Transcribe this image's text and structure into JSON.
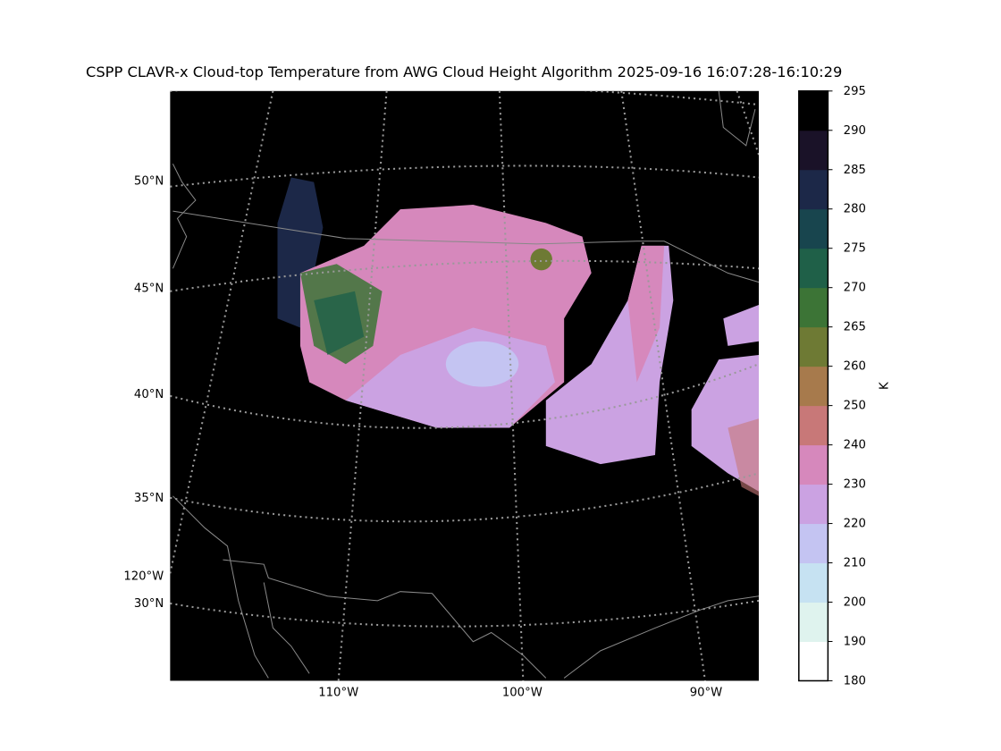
{
  "header": {
    "title": "CSPP CLAVR-x Cloud-top Temperature from AWG Cloud Height Algorithm 2025-09-16 16:07:28-16:10:29"
  },
  "map": {
    "lat_labels": [
      "50°N",
      "45°N",
      "40°N",
      "35°N",
      "30°N"
    ],
    "lon_labels": [
      "110°W",
      "100°W",
      "90°W"
    ],
    "edge_lon_label": "120°W"
  },
  "colorbar": {
    "label": "K",
    "ticks": [
      180,
      190,
      200,
      210,
      220,
      230,
      240,
      250,
      260,
      265,
      270,
      275,
      280,
      285,
      290,
      295
    ],
    "colors": [
      "#ffffff",
      "#dff3ee",
      "#c6e2f2",
      "#c4c4f2",
      "#cba2e2",
      "#d688bc",
      "#c87878",
      "#a77a4c",
      "#6e7a34",
      "#3c7436",
      "#1f6048",
      "#18454e",
      "#1c2848",
      "#1a1228",
      "#000000"
    ]
  }
}
